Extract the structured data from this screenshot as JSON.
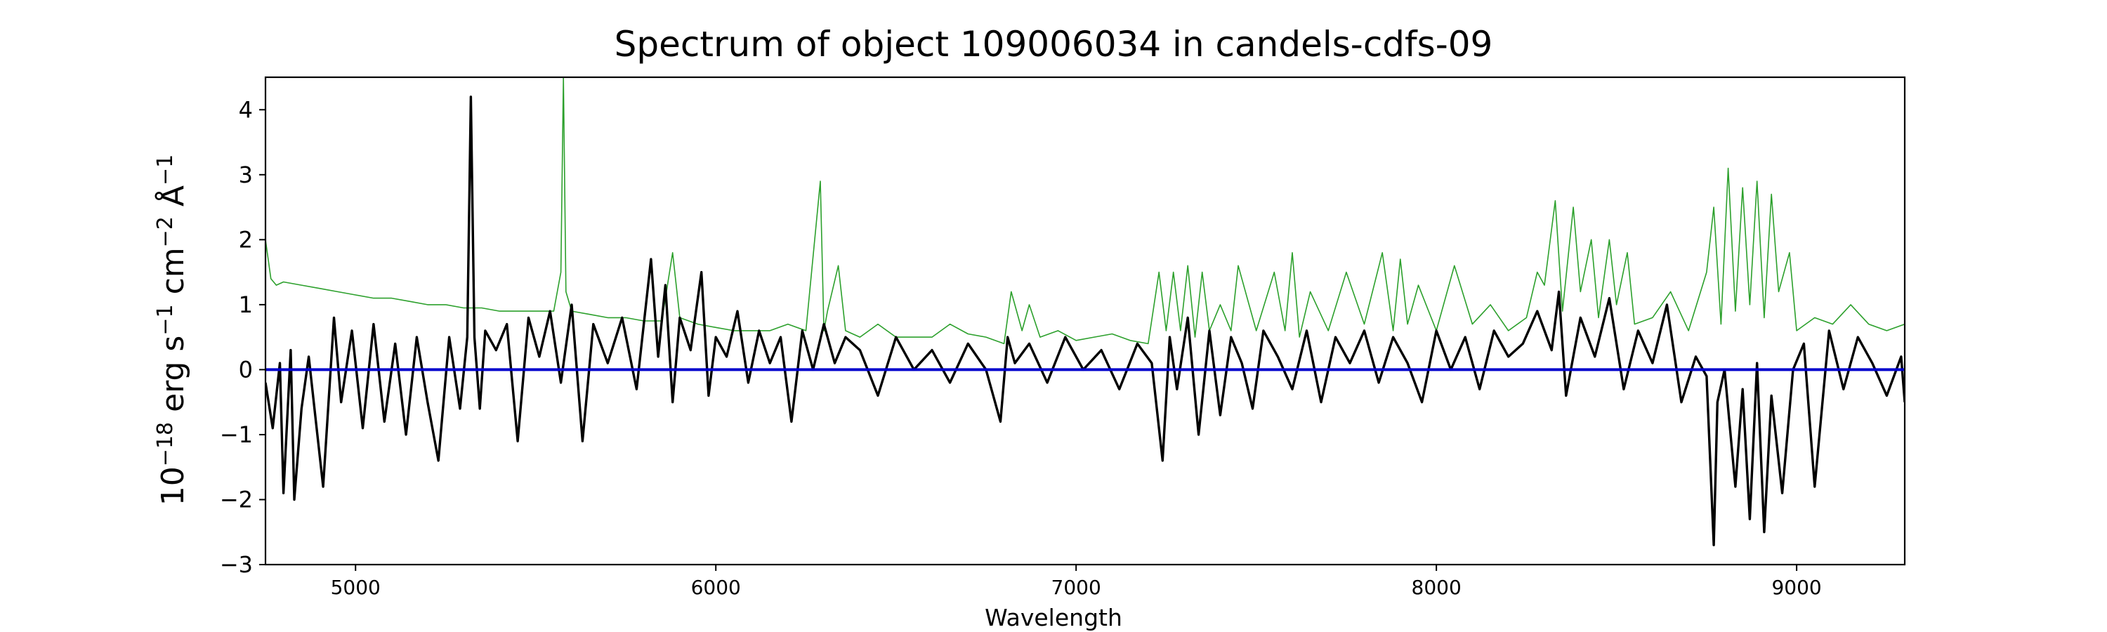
{
  "chart_data": {
    "type": "line",
    "title": "Spectrum of object 109006034 in candels-cdfs-09",
    "xlabel": "Wavelength",
    "ylabel": {
      "base": "10",
      "exp1": "−18",
      "t1": " erg s",
      "exp2": "−1",
      "t2": " cm",
      "exp3": "−2",
      "t3": " Å",
      "exp4": "−1"
    },
    "xlim": [
      4750,
      9300
    ],
    "ylim": [
      -3.0,
      4.5
    ],
    "xticks": [
      5000,
      6000,
      7000,
      8000,
      9000
    ],
    "xtick_labels": [
      "5000",
      "6000",
      "7000",
      "8000",
      "9000"
    ],
    "yticks": [
      -3,
      -2,
      -1,
      0,
      1,
      2,
      3,
      4
    ],
    "ytick_labels": [
      "−3",
      "−2",
      "−1",
      "0",
      "1",
      "2",
      "3",
      "4"
    ],
    "grid": false,
    "colors": {
      "flux": "#000000",
      "error": "#2ca02c",
      "zero": "#0000cc"
    },
    "series": [
      {
        "role": "error",
        "x": [
          4750,
          4765,
          4780,
          4800,
          4850,
          4900,
          4950,
          5000,
          5050,
          5100,
          5150,
          5200,
          5250,
          5300,
          5350,
          5400,
          5450,
          5500,
          5550,
          5570,
          5577,
          5584,
          5600,
          5650,
          5700,
          5750,
          5800,
          5850,
          5880,
          5900,
          5950,
          6000,
          6050,
          6100,
          6150,
          6200,
          6250,
          6290,
          6300,
          6310,
          6340,
          6360,
          6380,
          6400,
          6450,
          6500,
          6550,
          6600,
          6650,
          6700,
          6750,
          6800,
          6820,
          6850,
          6870,
          6900,
          6950,
          7000,
          7050,
          7100,
          7150,
          7200,
          7230,
          7250,
          7270,
          7290,
          7310,
          7330,
          7350,
          7370,
          7400,
          7430,
          7450,
          7500,
          7550,
          7580,
          7600,
          7620,
          7650,
          7700,
          7750,
          7800,
          7850,
          7880,
          7900,
          7920,
          7950,
          8000,
          8050,
          8100,
          8150,
          8200,
          8250,
          8280,
          8300,
          8330,
          8350,
          8380,
          8400,
          8430,
          8450,
          8480,
          8500,
          8530,
          8550,
          8600,
          8650,
          8700,
          8750,
          8770,
          8790,
          8810,
          8830,
          8850,
          8870,
          8890,
          8910,
          8930,
          8950,
          8980,
          9000,
          9050,
          9100,
          9150,
          9200,
          9250,
          9300
        ],
        "y": [
          2.0,
          1.4,
          1.3,
          1.35,
          1.3,
          1.25,
          1.2,
          1.15,
          1.1,
          1.1,
          1.05,
          1.0,
          1.0,
          0.95,
          0.95,
          0.9,
          0.9,
          0.9,
          0.9,
          1.5,
          4.5,
          1.2,
          0.9,
          0.85,
          0.8,
          0.8,
          0.75,
          0.75,
          1.8,
          0.8,
          0.7,
          0.65,
          0.6,
          0.6,
          0.6,
          0.7,
          0.6,
          2.9,
          0.6,
          0.9,
          1.6,
          0.6,
          0.55,
          0.5,
          0.7,
          0.5,
          0.5,
          0.5,
          0.7,
          0.55,
          0.5,
          0.4,
          1.2,
          0.6,
          1.0,
          0.5,
          0.6,
          0.45,
          0.5,
          0.55,
          0.45,
          0.4,
          1.5,
          0.6,
          1.5,
          0.6,
          1.6,
          0.5,
          1.5,
          0.6,
          1.0,
          0.6,
          1.6,
          0.6,
          1.5,
          0.6,
          1.8,
          0.5,
          1.2,
          0.6,
          1.5,
          0.7,
          1.8,
          0.6,
          1.7,
          0.7,
          1.3,
          0.6,
          1.6,
          0.7,
          1.0,
          0.6,
          0.8,
          1.5,
          1.3,
          2.6,
          0.9,
          2.5,
          1.2,
          2.0,
          0.8,
          2.0,
          1.0,
          1.8,
          0.7,
          0.8,
          1.2,
          0.6,
          1.5,
          2.5,
          0.7,
          3.1,
          0.9,
          2.8,
          1.0,
          2.9,
          0.8,
          2.7,
          1.2,
          1.8,
          0.6,
          0.8,
          0.7,
          1.0,
          0.7,
          0.6,
          0.7
        ]
      },
      {
        "role": "flux",
        "x": [
          4750,
          4770,
          4790,
          4800,
          4820,
          4830,
          4850,
          4870,
          4890,
          4910,
          4940,
          4960,
          4990,
          5020,
          5050,
          5080,
          5110,
          5140,
          5170,
          5200,
          5230,
          5260,
          5290,
          5310,
          5320,
          5330,
          5345,
          5360,
          5390,
          5420,
          5450,
          5480,
          5510,
          5540,
          5570,
          5600,
          5630,
          5660,
          5700,
          5740,
          5780,
          5820,
          5840,
          5860,
          5880,
          5900,
          5930,
          5960,
          5980,
          6000,
          6030,
          6060,
          6090,
          6120,
          6150,
          6180,
          6210,
          6240,
          6270,
          6300,
          6330,
          6360,
          6400,
          6450,
          6500,
          6550,
          6600,
          6650,
          6700,
          6750,
          6790,
          6810,
          6830,
          6870,
          6920,
          6970,
          7020,
          7070,
          7120,
          7170,
          7210,
          7240,
          7260,
          7280,
          7310,
          7340,
          7370,
          7400,
          7430,
          7460,
          7490,
          7520,
          7560,
          7600,
          7640,
          7680,
          7720,
          7760,
          7800,
          7840,
          7880,
          7920,
          7960,
          8000,
          8040,
          8080,
          8120,
          8160,
          8200,
          8240,
          8280,
          8320,
          8340,
          8360,
          8400,
          8440,
          8480,
          8520,
          8560,
          8600,
          8640,
          8680,
          8720,
          8750,
          8770,
          8780,
          8800,
          8830,
          8850,
          8870,
          8890,
          8910,
          8930,
          8960,
          8990,
          9020,
          9050,
          9090,
          9130,
          9170,
          9210,
          9250,
          9290,
          9300
        ],
        "y": [
          -0.2,
          -0.9,
          0.1,
          -1.9,
          0.3,
          -2.0,
          -0.6,
          0.2,
          -0.8,
          -1.8,
          0.8,
          -0.5,
          0.6,
          -0.9,
          0.7,
          -0.8,
          0.4,
          -1.0,
          0.5,
          -0.5,
          -1.4,
          0.5,
          -0.6,
          0.5,
          4.2,
          0.5,
          -0.6,
          0.6,
          0.3,
          0.7,
          -1.1,
          0.8,
          0.2,
          0.9,
          -0.2,
          1.0,
          -1.1,
          0.7,
          0.1,
          0.8,
          -0.3,
          1.7,
          0.2,
          1.3,
          -0.5,
          0.8,
          0.3,
          1.5,
          -0.4,
          0.5,
          0.2,
          0.9,
          -0.2,
          0.6,
          0.1,
          0.5,
          -0.8,
          0.6,
          0.0,
          0.7,
          0.1,
          0.5,
          0.3,
          -0.4,
          0.5,
          0.0,
          0.3,
          -0.2,
          0.4,
          0.0,
          -0.8,
          0.5,
          0.1,
          0.4,
          -0.2,
          0.5,
          0.0,
          0.3,
          -0.3,
          0.4,
          0.1,
          -1.4,
          0.5,
          -0.3,
          0.8,
          -1.0,
          0.6,
          -0.7,
          0.5,
          0.1,
          -0.6,
          0.6,
          0.2,
          -0.3,
          0.6,
          -0.5,
          0.5,
          0.1,
          0.6,
          -0.2,
          0.5,
          0.1,
          -0.5,
          0.6,
          0.0,
          0.5,
          -0.3,
          0.6,
          0.2,
          0.4,
          0.9,
          0.3,
          1.2,
          -0.4,
          0.8,
          0.2,
          1.1,
          -0.3,
          0.6,
          0.1,
          1.0,
          -0.5,
          0.2,
          -0.1,
          -2.7,
          -0.5,
          0.0,
          -1.8,
          -0.3,
          -2.3,
          0.1,
          -2.5,
          -0.4,
          -1.9,
          0.0,
          0.4,
          -1.8,
          0.6,
          -0.3,
          0.5,
          0.1,
          -0.4,
          0.2,
          -0.5
        ]
      }
    ]
  }
}
